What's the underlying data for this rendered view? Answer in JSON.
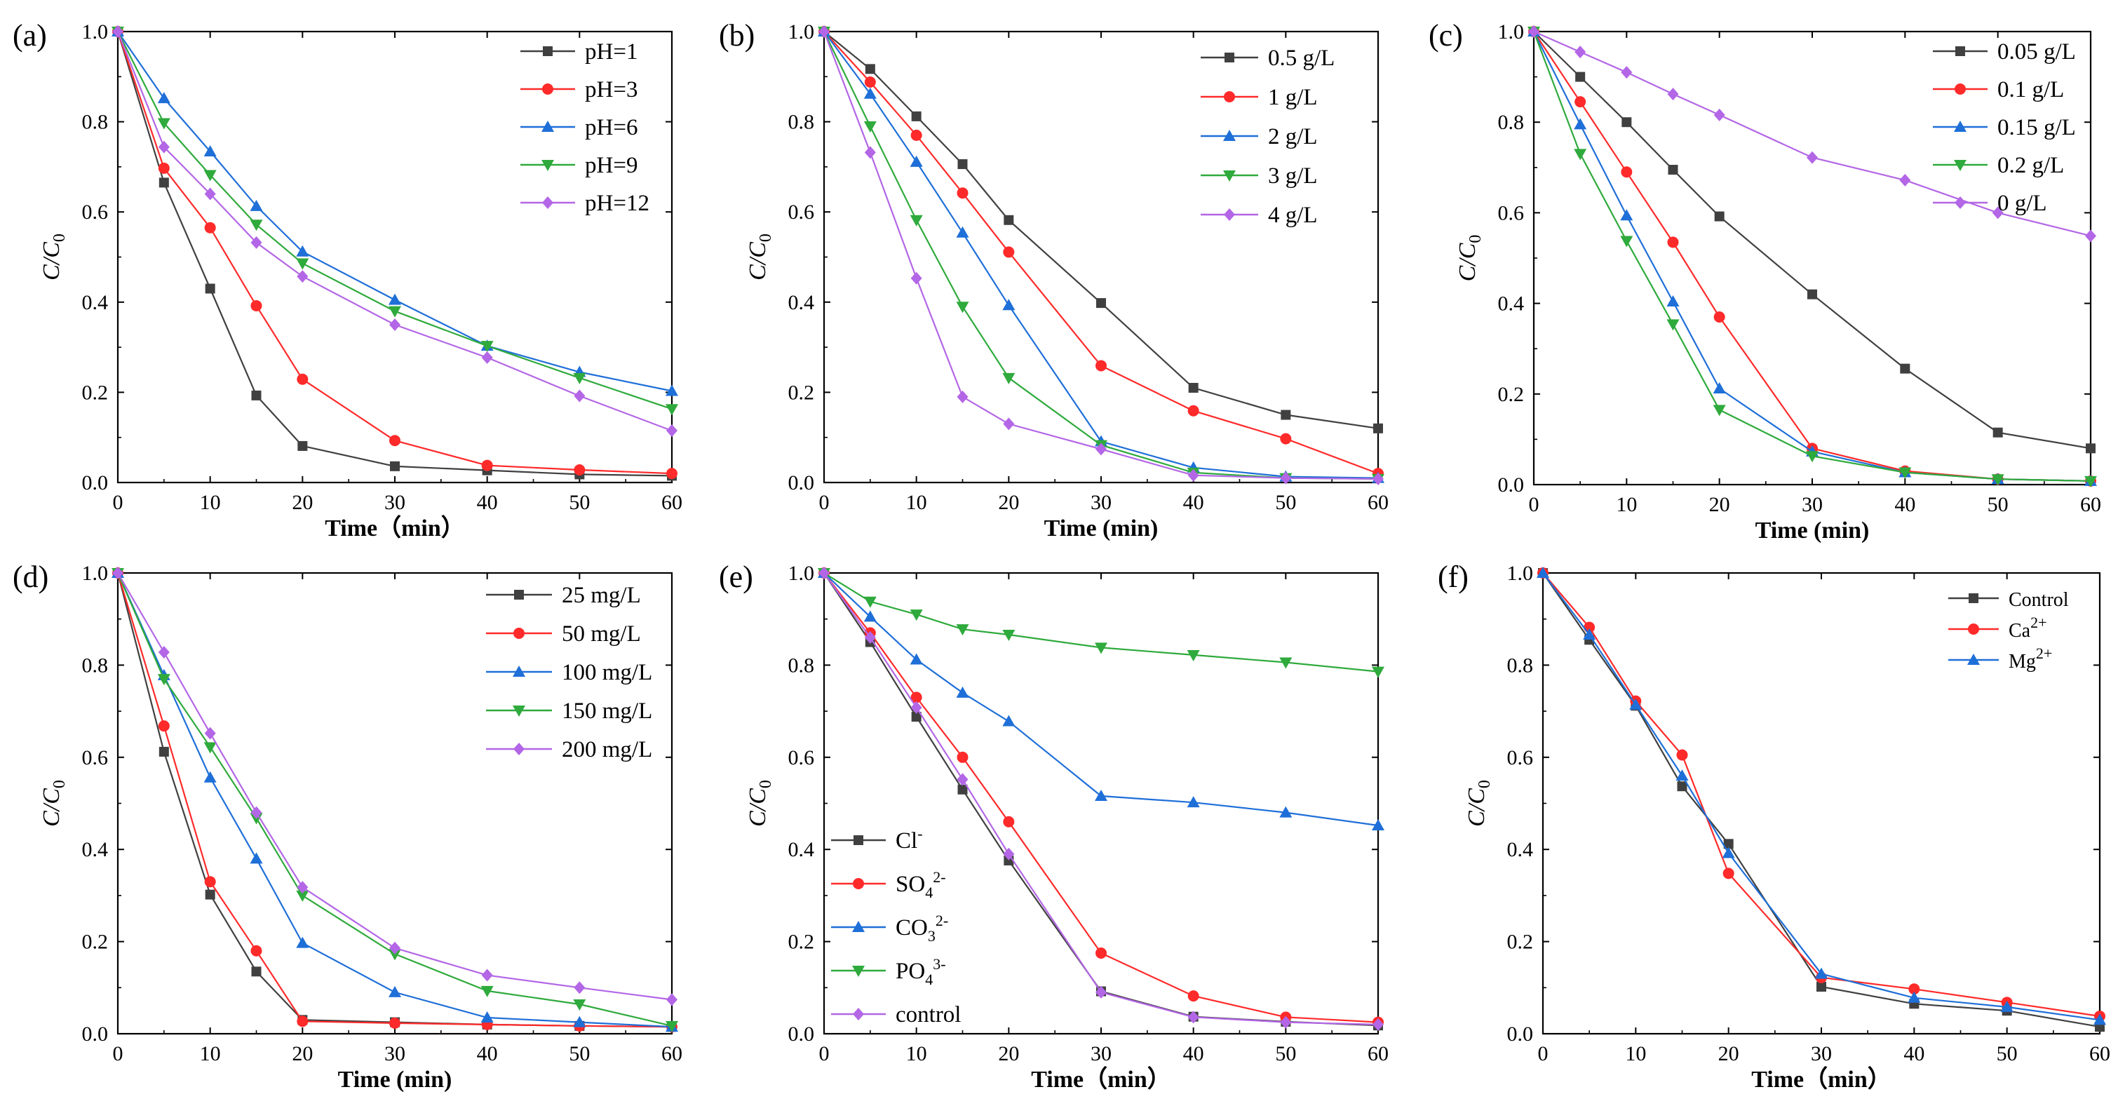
{
  "figure": {
    "background": "#ffffff",
    "series_colors": [
      "#404040",
      "#ff2a2a",
      "#1f6fd8",
      "#2faa3c",
      "#b366e6"
    ]
  },
  "chart_data": [
    {
      "type": "line",
      "panel_label": "(a)",
      "xlabel": "Time（min）",
      "ylabel_main": "C",
      "ylabel_sep": "/C",
      "ylabel_sub": "0",
      "xlim": [
        0,
        60
      ],
      "ylim": [
        0,
        1.0
      ],
      "xticks": [
        0,
        10,
        20,
        30,
        40,
        50,
        60
      ],
      "yticks": [
        0.0,
        0.2,
        0.4,
        0.6,
        0.8,
        1.0
      ],
      "ytick_labels": [
        "0.0",
        "0.2",
        "0.4",
        "0.6",
        "0.8",
        "1.0"
      ],
      "legend_position": "top-right",
      "x": [
        0,
        5,
        10,
        15,
        20,
        30,
        40,
        50,
        60
      ],
      "series": [
        {
          "name": "pH=1",
          "label": {
            "main": "pH=1"
          },
          "color": "#404040",
          "marker": "square",
          "values": [
            1.0,
            0.665,
            0.43,
            0.193,
            0.081,
            0.036,
            0.027,
            0.018,
            0.015
          ]
        },
        {
          "name": "pH=3",
          "label": {
            "main": "pH=3"
          },
          "color": "#ff2a2a",
          "marker": "circle",
          "values": [
            1.0,
            0.697,
            0.565,
            0.392,
            0.229,
            0.093,
            0.038,
            0.028,
            0.02
          ]
        },
        {
          "name": "pH=6",
          "label": {
            "main": "pH=6"
          },
          "color": "#1f6fd8",
          "marker": "triangle-up",
          "values": [
            1.0,
            0.852,
            0.734,
            0.613,
            0.512,
            0.405,
            0.303,
            0.245,
            0.203
          ]
        },
        {
          "name": "pH=9",
          "label": {
            "main": "pH=9"
          },
          "color": "#2faa3c",
          "marker": "triangle-down",
          "values": [
            1.0,
            0.797,
            0.682,
            0.572,
            0.486,
            0.38,
            0.303,
            0.232,
            0.163
          ]
        },
        {
          "name": "pH=12",
          "label": {
            "main": "pH=12"
          },
          "color": "#b366e6",
          "marker": "diamond",
          "values": [
            1.0,
            0.744,
            0.64,
            0.532,
            0.457,
            0.35,
            0.277,
            0.192,
            0.115
          ]
        }
      ]
    },
    {
      "type": "line",
      "panel_label": "(b)",
      "xlabel": "Time (min)",
      "ylabel_main": "C",
      "ylabel_sep": "/C",
      "ylabel_sub": "0",
      "xlim": [
        0,
        60
      ],
      "ylim": [
        0,
        1.0
      ],
      "xticks": [
        0,
        10,
        20,
        30,
        40,
        50,
        60
      ],
      "yticks": [
        0.0,
        0.2,
        0.4,
        0.6,
        0.8,
        1.0
      ],
      "ytick_labels": [
        "0.0",
        "0.2",
        "0.4",
        "0.6",
        "0.8",
        "1.0"
      ],
      "legend_position": "top-right",
      "x": [
        0,
        5,
        10,
        15,
        20,
        30,
        40,
        50,
        60
      ],
      "series": [
        {
          "name": "0.5 g/L",
          "label": {
            "main": "0.5 g/L"
          },
          "color": "#404040",
          "marker": "square",
          "values": [
            1.0,
            0.917,
            0.812,
            0.706,
            0.582,
            0.398,
            0.21,
            0.15,
            0.12
          ]
        },
        {
          "name": "1 g/L",
          "label": {
            "main": "1 g/L"
          },
          "color": "#ff2a2a",
          "marker": "circle",
          "values": [
            1.0,
            0.888,
            0.77,
            0.642,
            0.511,
            0.259,
            0.159,
            0.097,
            0.02
          ]
        },
        {
          "name": "2 g/L",
          "label": {
            "main": "2 g/L"
          },
          "color": "#1f6fd8",
          "marker": "triangle-up",
          "values": [
            1.0,
            0.862,
            0.711,
            0.554,
            0.393,
            0.091,
            0.033,
            0.013,
            0.01
          ]
        },
        {
          "name": "3 g/L",
          "label": {
            "main": "3 g/L"
          },
          "color": "#2faa3c",
          "marker": "triangle-down",
          "values": [
            1.0,
            0.79,
            0.582,
            0.39,
            0.232,
            0.083,
            0.022,
            0.01,
            0.008
          ]
        },
        {
          "name": "4 g/L",
          "label": {
            "main": "4 g/L"
          },
          "color": "#b366e6",
          "marker": "diamond",
          "values": [
            1.0,
            0.732,
            0.453,
            0.19,
            0.13,
            0.074,
            0.016,
            0.01,
            0.008
          ]
        }
      ]
    },
    {
      "type": "line",
      "panel_label": "(c)",
      "xlabel": "Time (min)",
      "ylabel_main": "C",
      "ylabel_sep": "/C",
      "ylabel_sub": "0",
      "xlim": [
        0,
        60
      ],
      "ylim": [
        0,
        1.0
      ],
      "xticks": [
        0,
        10,
        20,
        30,
        40,
        50,
        60
      ],
      "yticks": [
        0.0,
        0.2,
        0.4,
        0.6,
        0.8,
        1.0
      ],
      "ytick_labels": [
        "0.0",
        "0.2",
        "0.4",
        "0.6",
        "0.8",
        "1.0"
      ],
      "legend_position": "top-right",
      "x": [
        0,
        5,
        10,
        15,
        20,
        30,
        40,
        50,
        60
      ],
      "series": [
        {
          "name": "0.05 g/L",
          "label": {
            "main": "0.05 g/L"
          },
          "color": "#404040",
          "marker": "square",
          "values": [
            1.0,
            0.9,
            0.8,
            0.695,
            0.592,
            0.42,
            0.256,
            0.115,
            0.08
          ]
        },
        {
          "name": "0.1 g/L",
          "label": {
            "main": "0.1 g/L"
          },
          "color": "#ff2a2a",
          "marker": "circle",
          "values": [
            1.0,
            0.845,
            0.69,
            0.535,
            0.37,
            0.08,
            0.03,
            0.012,
            0.008
          ]
        },
        {
          "name": "0.15 g/L",
          "label": {
            "main": "0.15 g/L"
          },
          "color": "#1f6fd8",
          "marker": "triangle-up",
          "values": [
            1.0,
            0.795,
            0.594,
            0.404,
            0.212,
            0.073,
            0.027,
            0.012,
            0.008
          ]
        },
        {
          "name": "0.2 g/L",
          "label": {
            "main": "0.2 g/L"
          },
          "color": "#2faa3c",
          "marker": "triangle-down",
          "values": [
            1.0,
            0.73,
            0.538,
            0.354,
            0.165,
            0.063,
            0.027,
            0.012,
            0.008
          ]
        },
        {
          "name": "0 g/L",
          "label": {
            "main": "0 g/L"
          },
          "color": "#b366e6",
          "marker": "diamond",
          "values": [
            1.0,
            0.955,
            0.91,
            0.862,
            0.816,
            0.722,
            0.672,
            0.6,
            0.549
          ]
        }
      ]
    },
    {
      "type": "line",
      "panel_label": "(d)",
      "xlabel": "Time (min)",
      "ylabel_main": "C",
      "ylabel_sep": "/C",
      "ylabel_sub": "0",
      "xlim": [
        0,
        60
      ],
      "ylim": [
        0,
        1.0
      ],
      "xticks": [
        0,
        10,
        20,
        30,
        40,
        50,
        60
      ],
      "yticks": [
        0.0,
        0.2,
        0.4,
        0.6,
        0.8,
        1.0
      ],
      "ytick_labels": [
        "0.0",
        "0.2",
        "0.4",
        "0.6",
        "0.8",
        "1.0"
      ],
      "legend_position": "top-right",
      "x": [
        0,
        5,
        10,
        15,
        20,
        30,
        40,
        50,
        60
      ],
      "series": [
        {
          "name": "25 mg/L",
          "label": {
            "main": "25 mg/L"
          },
          "color": "#404040",
          "marker": "square",
          "values": [
            1.0,
            0.612,
            0.302,
            0.135,
            0.03,
            0.025,
            0.02,
            0.017,
            0.015
          ]
        },
        {
          "name": "50 mg/L",
          "label": {
            "main": "50 mg/L"
          },
          "color": "#ff2a2a",
          "marker": "circle",
          "values": [
            1.0,
            0.668,
            0.33,
            0.18,
            0.027,
            0.023,
            0.02,
            0.017,
            0.015
          ]
        },
        {
          "name": "100 mg/L",
          "label": {
            "main": "100 mg/L"
          },
          "color": "#1f6fd8",
          "marker": "triangle-up",
          "values": [
            1.0,
            0.778,
            0.556,
            0.38,
            0.197,
            0.09,
            0.035,
            0.025,
            0.015
          ]
        },
        {
          "name": "150 mg/L",
          "label": {
            "main": "150 mg/L"
          },
          "color": "#2faa3c",
          "marker": "triangle-down",
          "values": [
            1.0,
            0.77,
            0.622,
            0.468,
            0.3,
            0.173,
            0.093,
            0.064,
            0.017
          ]
        },
        {
          "name": "200 mg/L",
          "label": {
            "main": "200 mg/L"
          },
          "color": "#b366e6",
          "marker": "diamond",
          "values": [
            1.0,
            0.828,
            0.652,
            0.48,
            0.318,
            0.186,
            0.127,
            0.1,
            0.074
          ]
        }
      ]
    },
    {
      "type": "line",
      "panel_label": "(e)",
      "xlabel": "Time（min）",
      "ylabel_main": "C",
      "ylabel_sep": "/C",
      "ylabel_sub": "0",
      "xlim": [
        0,
        60
      ],
      "ylim": [
        0,
        1.0
      ],
      "xticks": [
        0,
        10,
        20,
        30,
        40,
        50,
        60
      ],
      "yticks": [
        0.0,
        0.2,
        0.4,
        0.6,
        0.8,
        1.0
      ],
      "ytick_labels": [
        "0.0",
        "0.2",
        "0.4",
        "0.6",
        "0.8",
        "1.0"
      ],
      "legend_position": "bottom-left",
      "x": [
        0,
        5,
        10,
        15,
        20,
        30,
        40,
        50,
        60
      ],
      "series": [
        {
          "name": "Cl-",
          "label": {
            "main": "Cl",
            "sub": "",
            "sup": "-"
          },
          "color": "#404040",
          "marker": "square",
          "values": [
            1.0,
            0.85,
            0.688,
            0.53,
            0.376,
            0.092,
            0.037,
            0.026,
            0.018
          ]
        },
        {
          "name": "SO42-",
          "label": {
            "main": "SO",
            "sub": "4",
            "sup": "2-"
          },
          "color": "#ff2a2a",
          "marker": "circle",
          "values": [
            1.0,
            0.87,
            0.73,
            0.6,
            0.46,
            0.175,
            0.082,
            0.036,
            0.025
          ]
        },
        {
          "name": "CO32-",
          "label": {
            "main": "CO",
            "sub": "3",
            "sup": "2-"
          },
          "color": "#1f6fd8",
          "marker": "triangle-up",
          "values": [
            1.0,
            0.905,
            0.812,
            0.74,
            0.678,
            0.516,
            0.502,
            0.48,
            0.452
          ]
        },
        {
          "name": "PO43-",
          "label": {
            "main": "PO",
            "sub": "4",
            "sup": "3-"
          },
          "color": "#2faa3c",
          "marker": "triangle-down",
          "values": [
            1.0,
            0.938,
            0.91,
            0.878,
            0.866,
            0.838,
            0.822,
            0.806,
            0.786
          ]
        },
        {
          "name": "control",
          "label": {
            "main": "control"
          },
          "color": "#b366e6",
          "marker": "diamond",
          "values": [
            1.0,
            0.86,
            0.708,
            0.552,
            0.39,
            0.09,
            0.036,
            0.025,
            0.02
          ]
        }
      ]
    },
    {
      "type": "line",
      "panel_label": "(f)",
      "xlabel": "Time（min）",
      "ylabel_main": "C",
      "ylabel_sep": "/C",
      "ylabel_sub": "0",
      "xlim": [
        0,
        60
      ],
      "ylim": [
        0,
        1.0
      ],
      "xticks": [
        0,
        10,
        20,
        30,
        40,
        50,
        60
      ],
      "yticks": [
        0.0,
        0.2,
        0.4,
        0.6,
        0.8,
        1.0
      ],
      "ytick_labels": [
        "0.0",
        "0.2",
        "0.4",
        "0.6",
        "0.8",
        "1.0"
      ],
      "legend_position": "top-right",
      "x": [
        0,
        5,
        10,
        15,
        20,
        30,
        40,
        50,
        60
      ],
      "series": [
        {
          "name": "Control",
          "label": {
            "main": "Control"
          },
          "color": "#404040",
          "marker": "square",
          "values": [
            1.0,
            0.855,
            0.712,
            0.537,
            0.412,
            0.102,
            0.065,
            0.05,
            0.015
          ]
        },
        {
          "name": "Ca2+",
          "label": {
            "main": "Ca",
            "sub": "",
            "sup": "2+"
          },
          "color": "#ff2a2a",
          "marker": "circle",
          "values": [
            1.0,
            0.882,
            0.722,
            0.605,
            0.348,
            0.122,
            0.097,
            0.068,
            0.038
          ]
        },
        {
          "name": "Mg2+",
          "label": {
            "main": "Mg",
            "sub": "",
            "sup": "2+"
          },
          "color": "#1f6fd8",
          "marker": "triangle-up",
          "values": [
            1.0,
            0.866,
            0.714,
            0.56,
            0.392,
            0.13,
            0.078,
            0.058,
            0.03
          ]
        }
      ]
    }
  ]
}
